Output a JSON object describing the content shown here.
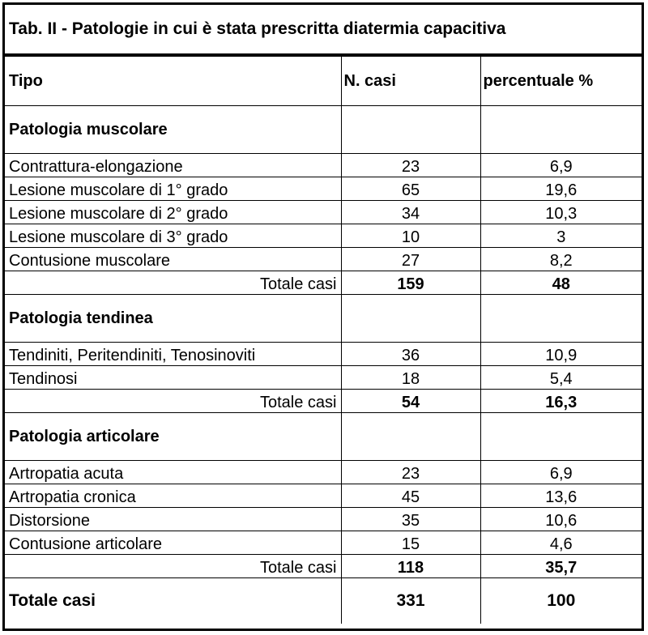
{
  "title": "Tab. II - Patologie in cui è stata prescritta diatermia capacitiva",
  "headers": {
    "tipo": "Tipo",
    "casi": "N. casi",
    "percent": "percentuale %"
  },
  "sections": [
    {
      "name": "Patologia muscolare",
      "rows": [
        {
          "label": "Contrattura-elongazione",
          "casi": "23",
          "percent": "6,9"
        },
        {
          "label": "Lesione muscolare di 1° grado",
          "casi": "65",
          "percent": "19,6"
        },
        {
          "label": "Lesione muscolare di 2° grado",
          "casi": "34",
          "percent": "10,3"
        },
        {
          "label": "Lesione muscolare di 3° grado",
          "casi": "10",
          "percent": "3"
        },
        {
          "label": "Contusione muscolare",
          "casi": "27",
          "percent": "8,2"
        }
      ],
      "total": {
        "label": "Totale casi",
        "casi": "159",
        "percent": "48"
      }
    },
    {
      "name": "Patologia tendinea",
      "rows": [
        {
          "label": "Tendiniti, Peritendiniti, Tenosinoviti",
          "casi": "36",
          "percent": "10,9"
        },
        {
          "label": "Tendinosi",
          "casi": "18",
          "percent": "5,4"
        }
      ],
      "total": {
        "label": "Totale casi",
        "casi": "54",
        "percent": "16,3"
      }
    },
    {
      "name": "Patologia articolare",
      "rows": [
        {
          "label": "Artropatia acuta",
          "casi": "23",
          "percent": "6,9"
        },
        {
          "label": "Artropatia cronica",
          "casi": "45",
          "percent": "13,6"
        },
        {
          "label": "Distorsione",
          "casi": "35",
          "percent": "10,6"
        },
        {
          "label": "Contusione articolare",
          "casi": "15",
          "percent": "4,6"
        }
      ],
      "total": {
        "label": "Totale casi",
        "casi": "118",
        "percent": "35,7"
      }
    }
  ],
  "grand_total": {
    "label": "Totale casi",
    "casi": "331",
    "percent": "100"
  }
}
